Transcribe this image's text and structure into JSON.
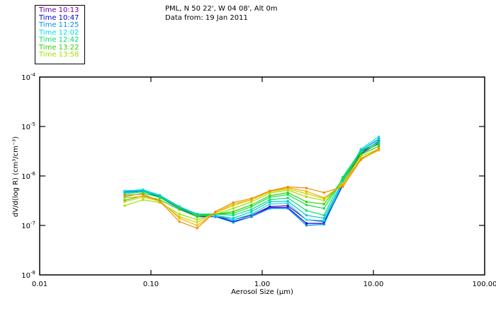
{
  "header": {
    "location": "PML, N 50 22', W 04 08', Alt 0m",
    "date_line": "Data from: 19 Jan 2011"
  },
  "legend": {
    "items": [
      {
        "label": "Time 10:13",
        "color": "#6a00a8"
      },
      {
        "label": "Time 10:47",
        "color": "#0000e0"
      },
      {
        "label": "Time 11:25",
        "color": "#0090f0"
      },
      {
        "label": "Time 12:02",
        "color": "#00e0e0"
      },
      {
        "label": "Time 12:42",
        "color": "#00e070"
      },
      {
        "label": "Time 13:22",
        "color": "#30d000"
      },
      {
        "label": "Time 13:58",
        "color": "#a0e000"
      }
    ]
  },
  "chart_data": {
    "type": "line",
    "title": "PML, N 50 22', W 04 08', Alt 0m",
    "subtitle": "Data from: 19 Jan 2011",
    "xlabel": "Aerosol Size (µm)",
    "ylabel": "dV/d(log R) (cm³/cm⁻³)",
    "xscale": "log",
    "yscale": "log",
    "xlim": [
      0.01,
      100
    ],
    "ylim": [
      1e-08,
      0.0001
    ],
    "xticks": [
      0.01,
      0.1,
      1,
      10,
      100
    ],
    "xtick_labels": [
      "0.01",
      "0.10",
      "1.00",
      "10.00",
      "100.00"
    ],
    "yticks": [
      0.0001,
      1e-05,
      1e-06,
      1e-07,
      1e-08
    ],
    "ytick_labels": [
      {
        "base": "10",
        "exp": "-4"
      },
      {
        "base": "10",
        "exp": "-5"
      },
      {
        "base": "10",
        "exp": "-6"
      },
      {
        "base": "10",
        "exp": "-7"
      },
      {
        "base": "10",
        "exp": "-8"
      }
    ],
    "legend_position": "top-left, outside plot",
    "grid": false,
    "x": [
      0.058,
      0.085,
      0.12,
      0.18,
      0.26,
      0.38,
      0.55,
      0.8,
      1.17,
      1.7,
      2.5,
      3.6,
      5.3,
      7.7,
      11.2
    ],
    "series": [
      {
        "name": "Time 10:13",
        "color": "#6a00a8",
        "values": [
          4.8e-07,
          5e-07,
          3.8e-07,
          2.3e-07,
          1.6e-07,
          1.5e-07,
          1.3e-07,
          1.6e-07,
          2.4e-07,
          2.5e-07,
          1.3e-07,
          1.2e-07,
          6.5e-07,
          2.8e-06,
          4.6e-06
        ]
      },
      {
        "name": "Time 10:47",
        "color": "#0000e0",
        "values": [
          4.6e-07,
          4.9e-07,
          3.7e-07,
          2.2e-07,
          1.5e-07,
          1.5e-07,
          1.2e-07,
          1.5e-07,
          2.3e-07,
          2.3e-07,
          1.1e-07,
          1.1e-07,
          6.5e-07,
          3e-06,
          5e-06
        ]
      },
      {
        "name": "Time 11:25",
        "color": "#0090f0",
        "values": [
          4.8e-07,
          5.1e-07,
          3.9e-07,
          2.2e-07,
          1.6e-07,
          1.5e-07,
          1.15e-07,
          1.5e-07,
          2.2e-07,
          2.2e-07,
          1e-07,
          1.05e-07,
          7e-07,
          3.3e-06,
          5.6e-06
        ]
      },
      {
        "name": "Time 12:02",
        "color": "#00e0e0",
        "values": [
          5e-07,
          5.3e-07,
          4.1e-07,
          2.4e-07,
          1.7e-07,
          1.6e-07,
          1.3e-07,
          1.7e-07,
          2.7e-07,
          2.8e-07,
          1.3e-07,
          1.25e-07,
          7.5e-07,
          3.5e-06,
          6.2e-06
        ]
      },
      {
        "name": "Time 12:42",
        "color": "#00e070",
        "values": [
          4.3e-07,
          4.8e-07,
          3.9e-07,
          2.4e-07,
          1.7e-07,
          1.7e-07,
          1.6e-07,
          2.1e-07,
          3.3e-07,
          3.6e-07,
          2e-07,
          1.6e-07,
          9.5e-07,
          3.2e-06,
          4.8e-06
        ]
      },
      {
        "name": "Time 13:22",
        "color": "#30d000",
        "values": [
          3.2e-07,
          4e-07,
          3.3e-07,
          2.1e-07,
          1.5e-07,
          1.7e-07,
          1.9e-07,
          2.6e-07,
          4e-07,
          4.6e-07,
          3e-07,
          2.7e-07,
          8.5e-07,
          2.7e-06,
          4e-06
        ]
      },
      {
        "name": "Time 13:58",
        "color": "#a0e000",
        "values": [
          2.5e-07,
          3.3e-07,
          2.9e-07,
          1.7e-07,
          1.3e-07,
          1.7e-07,
          2.2e-07,
          3e-07,
          4.5e-07,
          5.2e-07,
          3.8e-07,
          3.2e-07,
          7.5e-07,
          2.5e-06,
          3.5e-06
        ]
      },
      {
        "name": "",
        "color": "#00c8c8",
        "values": [
          4.6e-07,
          5e-07,
          4e-07,
          2.4e-07,
          1.7e-07,
          1.6e-07,
          1.4e-07,
          1.9e-07,
          3e-07,
          3.1e-07,
          1.6e-07,
          1.4e-07,
          8e-07,
          3.3e-06,
          5.4e-06
        ]
      },
      {
        "name": "",
        "color": "#10e040",
        "values": [
          3.8e-07,
          4.5e-07,
          3.7e-07,
          2.3e-07,
          1.6e-07,
          1.7e-07,
          1.75e-07,
          2.4e-07,
          3.7e-07,
          4.2e-07,
          2.6e-07,
          2.2e-07,
          9e-07,
          3e-06,
          4.4e-06
        ]
      },
      {
        "name": "",
        "color": "#d0d000",
        "values": [
          3e-07,
          3.7e-07,
          3.1e-07,
          1.5e-07,
          1.15e-07,
          1.8e-07,
          2.5e-07,
          3.3e-07,
          4.8e-07,
          5.5e-07,
          4.4e-07,
          3.5e-07,
          7e-07,
          2.3e-06,
          3.4e-06
        ]
      },
      {
        "name": "",
        "color": "#f0b000",
        "values": [
          3.6e-07,
          3.9e-07,
          3.2e-07,
          1.4e-07,
          1e-07,
          1.8e-07,
          2.7e-07,
          3.3e-07,
          4.9e-07,
          5.8e-07,
          4.9e-07,
          3.6e-07,
          6.6e-07,
          2.2e-06,
          3.3e-06
        ]
      },
      {
        "name": "",
        "color": "#f08c00",
        "values": [
          4.1e-07,
          4.3e-07,
          3.1e-07,
          1.2e-07,
          8.8e-08,
          1.9e-07,
          2.9e-07,
          3.5e-07,
          5e-07,
          6e-07,
          5.7e-07,
          4.6e-07,
          6e-07,
          2.1e-06,
          3.6e-06
        ]
      }
    ]
  }
}
